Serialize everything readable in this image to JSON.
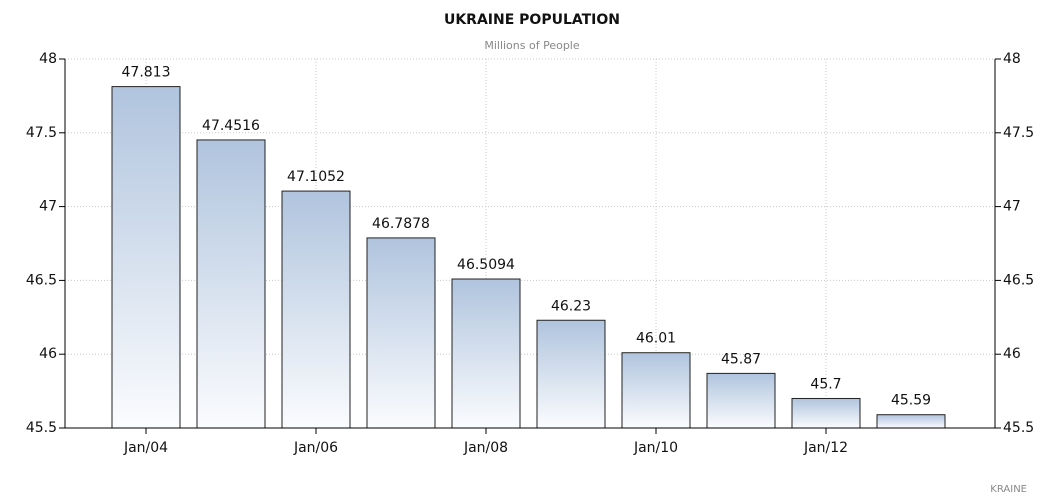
{
  "chart_data": {
    "type": "bar",
    "title": "UKRAINE POPULATION",
    "subtitle": "Millions of People",
    "categories": [
      "Jan/04",
      null,
      "Jan/06",
      null,
      "Jan/08",
      null,
      "Jan/10",
      null,
      "Jan/12",
      null
    ],
    "values": [
      47.813,
      47.4516,
      47.1052,
      46.7878,
      46.5094,
      46.23,
      46.01,
      45.87,
      45.7,
      45.59
    ],
    "color": "#b0c4de",
    "ylim": [
      45.5,
      48
    ],
    "yticks": [
      45.5,
      46,
      46.5,
      47,
      47.5,
      48
    ],
    "grid": true,
    "watermark": "KRAINE"
  }
}
